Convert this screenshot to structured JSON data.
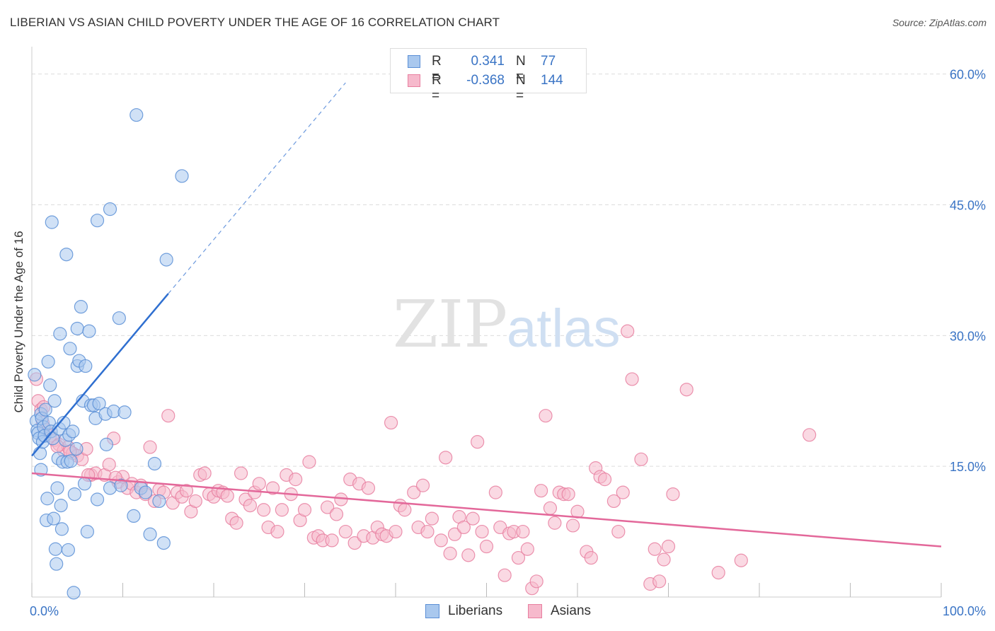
{
  "title": "LIBERIAN VS ASIAN CHILD POVERTY UNDER THE AGE OF 16 CORRELATION CHART",
  "source": "Source: ZipAtlas.com",
  "watermark": {
    "zip": "ZIP",
    "atlas": "atlas"
  },
  "colors": {
    "liberians_fill": "#a9c8ee",
    "liberians_stroke": "#5b8fd6",
    "liberians_line": "#2f6fd0",
    "asians_fill": "#f6b9cc",
    "asians_stroke": "#e87fa0",
    "asians_line": "#e3689a",
    "tick_label": "#3a74c5",
    "grid": "#dcdcdc"
  },
  "stats": [
    {
      "series": "Liberians",
      "r_label": "R =",
      "r_value": "0.341",
      "n_label": "N =",
      "n_value": "77"
    },
    {
      "series": "Asians",
      "r_label": "R =",
      "r_value": "-0.368",
      "n_label": "N =",
      "n_value": "144"
    }
  ],
  "legend": [
    "Liberians",
    "Asians"
  ],
  "chart_data": {
    "type": "scatter",
    "title": "LIBERIAN VS ASIAN CHILD POVERTY UNDER THE AGE OF 16 CORRELATION CHART",
    "xlabel": "",
    "ylabel": "Child Poverty Under the Age of 16",
    "xlim": [
      0,
      100
    ],
    "ylim": [
      0,
      62
    ],
    "x_tick_labels": [
      {
        "value": 0,
        "label": "0.0%"
      },
      {
        "value": 100,
        "label": "100.0%"
      }
    ],
    "y_tick_labels": [
      {
        "value": 15,
        "label": "15.0%"
      },
      {
        "value": 30,
        "label": "30.0%"
      },
      {
        "value": 45,
        "label": "45.0%"
      },
      {
        "value": 60,
        "label": "60.0%"
      }
    ],
    "grid": true,
    "legend_position": "bottom-center",
    "series": [
      {
        "name": "Liberians",
        "trend": {
          "x": [
            0,
            15
          ],
          "y": [
            16.2,
            34.8
          ],
          "extended_dashed_to": [
            34.5,
            59.0
          ]
        },
        "points": [
          [
            0.3,
            25.5
          ],
          [
            0.5,
            20.2
          ],
          [
            0.6,
            19.1
          ],
          [
            0.7,
            18.8
          ],
          [
            0.8,
            18.2
          ],
          [
            0.9,
            16.5
          ],
          [
            1.0,
            14.6
          ],
          [
            1.0,
            21.0
          ],
          [
            1.1,
            20.5
          ],
          [
            1.2,
            17.8
          ],
          [
            1.3,
            19.5
          ],
          [
            1.4,
            18.5
          ],
          [
            1.5,
            21.5
          ],
          [
            1.6,
            8.8
          ],
          [
            1.7,
            11.3
          ],
          [
            1.8,
            27.0
          ],
          [
            1.9,
            20.0
          ],
          [
            2.0,
            24.3
          ],
          [
            2.1,
            19.0
          ],
          [
            2.2,
            43.0
          ],
          [
            2.3,
            18.2
          ],
          [
            2.4,
            9.0
          ],
          [
            2.5,
            22.5
          ],
          [
            2.6,
            5.5
          ],
          [
            2.7,
            3.8
          ],
          [
            2.8,
            12.5
          ],
          [
            2.9,
            15.9
          ],
          [
            3.0,
            19.3
          ],
          [
            3.1,
            30.2
          ],
          [
            3.2,
            10.5
          ],
          [
            3.3,
            7.8
          ],
          [
            3.4,
            15.5
          ],
          [
            3.5,
            20.0
          ],
          [
            3.7,
            18.0
          ],
          [
            3.8,
            39.3
          ],
          [
            3.9,
            15.5
          ],
          [
            4.0,
            5.4
          ],
          [
            4.1,
            18.6
          ],
          [
            4.2,
            28.5
          ],
          [
            4.3,
            15.6
          ],
          [
            4.5,
            19.0
          ],
          [
            4.6,
            0.5
          ],
          [
            4.7,
            11.8
          ],
          [
            4.9,
            17.0
          ],
          [
            5.0,
            26.5
          ],
          [
            5.0,
            30.8
          ],
          [
            5.2,
            27.1
          ],
          [
            5.4,
            33.3
          ],
          [
            5.6,
            22.5
          ],
          [
            5.8,
            13.0
          ],
          [
            5.9,
            26.5
          ],
          [
            6.1,
            7.5
          ],
          [
            6.3,
            30.5
          ],
          [
            6.5,
            22.0
          ],
          [
            6.8,
            22.0
          ],
          [
            7.0,
            20.5
          ],
          [
            7.2,
            43.2
          ],
          [
            7.2,
            11.2
          ],
          [
            7.4,
            22.2
          ],
          [
            8.1,
            21.0
          ],
          [
            8.2,
            17.5
          ],
          [
            8.6,
            44.5
          ],
          [
            8.6,
            12.5
          ],
          [
            9.0,
            21.3
          ],
          [
            9.6,
            32.0
          ],
          [
            9.8,
            12.8
          ],
          [
            10.2,
            21.2
          ],
          [
            11.2,
            9.3
          ],
          [
            11.5,
            55.3
          ],
          [
            12.0,
            12.5
          ],
          [
            12.5,
            12.0
          ],
          [
            13.0,
            7.2
          ],
          [
            13.5,
            15.3
          ],
          [
            14.0,
            11.0
          ],
          [
            14.5,
            6.2
          ],
          [
            14.8,
            38.7
          ],
          [
            16.5,
            48.3
          ]
        ]
      },
      {
        "name": "Asians",
        "trend": {
          "x": [
            0,
            100
          ],
          "y": [
            14.2,
            5.8
          ]
        },
        "points": [
          [
            0.5,
            25.0
          ],
          [
            0.7,
            22.5
          ],
          [
            1.0,
            21.5
          ],
          [
            1.2,
            20.0
          ],
          [
            1.5,
            19.2
          ],
          [
            2.0,
            18.5
          ],
          [
            2.5,
            18.0
          ],
          [
            3.0,
            17.5
          ],
          [
            3.5,
            16.8
          ],
          [
            4.0,
            17.2
          ],
          [
            4.5,
            16.5
          ],
          [
            5.0,
            16.2
          ],
          [
            5.5,
            15.8
          ],
          [
            6.0,
            17.0
          ],
          [
            6.5,
            14.0
          ],
          [
            7.0,
            14.2
          ],
          [
            8.0,
            14.0
          ],
          [
            8.5,
            15.2
          ],
          [
            9.0,
            18.2
          ],
          [
            9.5,
            13.2
          ],
          [
            10.0,
            13.8
          ],
          [
            10.5,
            12.5
          ],
          [
            11.0,
            13.0
          ],
          [
            11.5,
            12.0
          ],
          [
            12.0,
            12.8
          ],
          [
            12.5,
            11.8
          ],
          [
            13.0,
            17.2
          ],
          [
            13.5,
            11.0
          ],
          [
            14.0,
            12.3
          ],
          [
            14.5,
            12.0
          ],
          [
            15.0,
            20.8
          ],
          [
            15.5,
            10.8
          ],
          [
            16.0,
            12.0
          ],
          [
            16.5,
            11.5
          ],
          [
            17.0,
            12.2
          ],
          [
            17.5,
            9.8
          ],
          [
            18.0,
            11.0
          ],
          [
            18.5,
            14.0
          ],
          [
            19.0,
            14.2
          ],
          [
            19.5,
            11.8
          ],
          [
            20.0,
            11.5
          ],
          [
            20.5,
            12.2
          ],
          [
            21.0,
            12.0
          ],
          [
            21.5,
            11.6
          ],
          [
            22.0,
            9.0
          ],
          [
            22.5,
            8.5
          ],
          [
            23.0,
            14.2
          ],
          [
            23.5,
            11.2
          ],
          [
            24.0,
            10.5
          ],
          [
            24.5,
            12.0
          ],
          [
            25.0,
            13.0
          ],
          [
            25.5,
            10.0
          ],
          [
            26.0,
            8.0
          ],
          [
            26.5,
            12.5
          ],
          [
            27.0,
            7.5
          ],
          [
            27.5,
            10.0
          ],
          [
            28.0,
            14.0
          ],
          [
            28.5,
            11.8
          ],
          [
            29.0,
            13.5
          ],
          [
            29.5,
            8.8
          ],
          [
            30.0,
            10.0
          ],
          [
            30.5,
            15.5
          ],
          [
            31.0,
            6.8
          ],
          [
            31.5,
            7.0
          ],
          [
            32.0,
            6.5
          ],
          [
            32.5,
            10.3
          ],
          [
            33.0,
            6.5
          ],
          [
            33.5,
            9.5
          ],
          [
            34.0,
            11.2
          ],
          [
            34.5,
            7.5
          ],
          [
            35.0,
            13.5
          ],
          [
            35.5,
            6.2
          ],
          [
            36.0,
            13.0
          ],
          [
            36.5,
            7.0
          ],
          [
            37.0,
            12.5
          ],
          [
            37.5,
            6.8
          ],
          [
            38.0,
            8.0
          ],
          [
            38.5,
            7.2
          ],
          [
            39.0,
            7.0
          ],
          [
            39.5,
            20.0
          ],
          [
            40.0,
            7.5
          ],
          [
            40.5,
            10.5
          ],
          [
            41.0,
            10.0
          ],
          [
            42.0,
            12.0
          ],
          [
            42.5,
            8.0
          ],
          [
            43.0,
            12.8
          ],
          [
            43.5,
            7.5
          ],
          [
            44.0,
            9.0
          ],
          [
            45.0,
            6.5
          ],
          [
            45.5,
            16.0
          ],
          [
            46.0,
            5.0
          ],
          [
            46.5,
            7.2
          ],
          [
            47.0,
            9.2
          ],
          [
            47.5,
            8.0
          ],
          [
            48.0,
            4.8
          ],
          [
            48.5,
            9.0
          ],
          [
            49.0,
            17.8
          ],
          [
            49.5,
            7.5
          ],
          [
            50.0,
            5.8
          ],
          [
            51.0,
            12.0
          ],
          [
            51.5,
            8.0
          ],
          [
            52.0,
            2.5
          ],
          [
            52.5,
            7.3
          ],
          [
            53.0,
            7.5
          ],
          [
            53.5,
            4.5
          ],
          [
            54.0,
            7.5
          ],
          [
            54.5,
            5.5
          ],
          [
            55.0,
            1.0
          ],
          [
            55.5,
            1.8
          ],
          [
            56.0,
            12.2
          ],
          [
            56.5,
            20.8
          ],
          [
            57.0,
            10.2
          ],
          [
            57.5,
            8.5
          ],
          [
            58.0,
            12.0
          ],
          [
            58.5,
            11.8
          ],
          [
            59.0,
            11.8
          ],
          [
            59.5,
            8.2
          ],
          [
            60.0,
            9.8
          ],
          [
            61.0,
            5.2
          ],
          [
            61.5,
            4.5
          ],
          [
            62.0,
            14.8
          ],
          [
            62.5,
            13.8
          ],
          [
            63.0,
            13.5
          ],
          [
            64.0,
            11.0
          ],
          [
            64.5,
            7.5
          ],
          [
            65.0,
            12.0
          ],
          [
            65.5,
            30.5
          ],
          [
            66.0,
            25.0
          ],
          [
            67.0,
            15.8
          ],
          [
            68.0,
            1.5
          ],
          [
            68.5,
            5.5
          ],
          [
            69.0,
            1.8
          ],
          [
            69.5,
            4.3
          ],
          [
            70.0,
            5.8
          ],
          [
            70.5,
            11.8
          ],
          [
            72.0,
            23.8
          ],
          [
            75.5,
            2.8
          ],
          [
            78.0,
            4.2
          ],
          [
            85.5,
            18.6
          ],
          [
            1.3,
            21.8
          ],
          [
            2.8,
            17.3
          ],
          [
            4.2,
            16.7
          ],
          [
            6.2,
            14.0
          ],
          [
            9.2,
            13.7
          ]
        ]
      }
    ]
  }
}
